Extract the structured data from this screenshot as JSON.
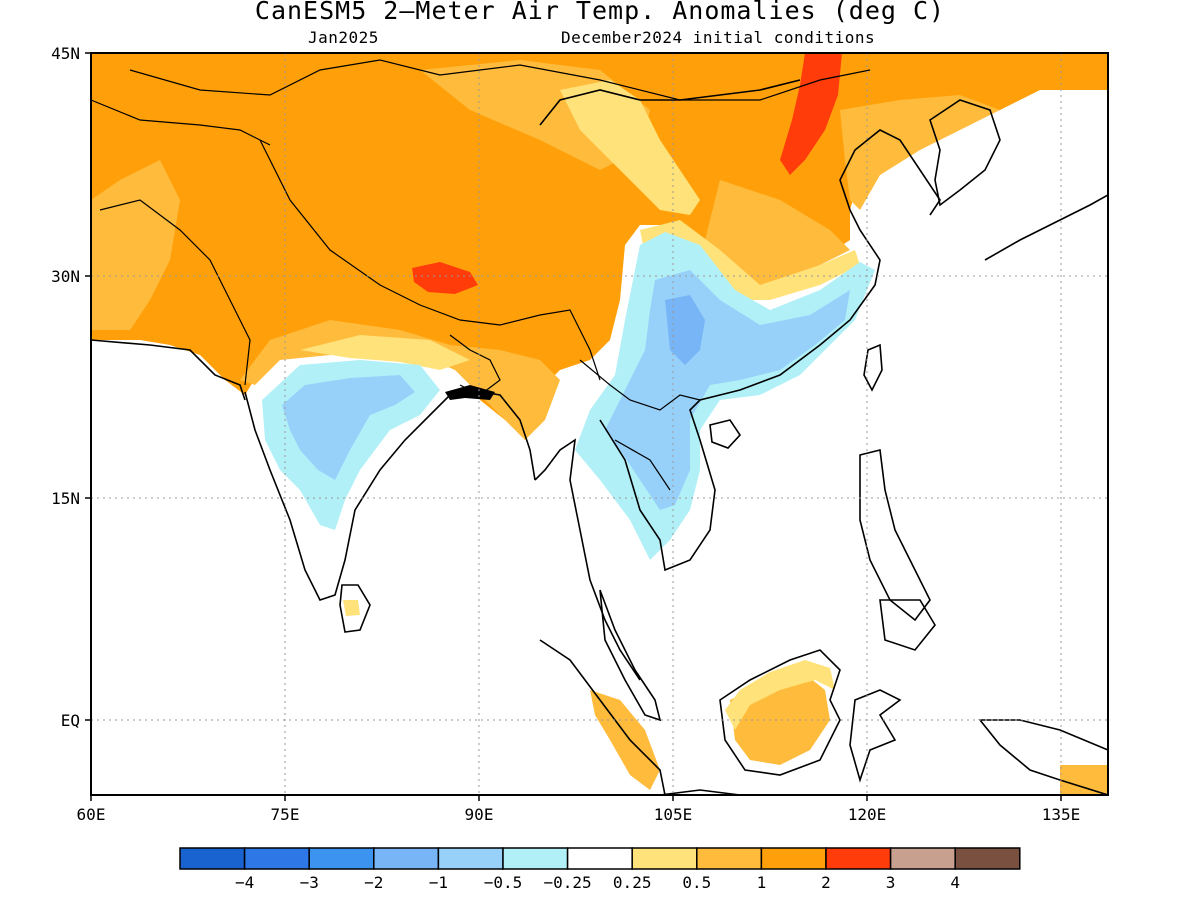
{
  "title": "CanESM5 2—Meter Air Temp. Anomalies (deg C)",
  "subtitle_left": "Jan2025",
  "subtitle_right": "December2024 initial conditions",
  "lon_ticks": [
    "60E",
    "75E",
    "90E",
    "105E",
    "120E",
    "135E"
  ],
  "lat_ticks": [
    "45N",
    "30N",
    "15N",
    "EQ"
  ],
  "colorbar": {
    "colors": [
      "#1863d0",
      "#2d78e6",
      "#3d94f0",
      "#77b5f6",
      "#97d1fa",
      "#b2f0f8",
      "#ffffff",
      "#ffe27a",
      "#ffbb3c",
      "#ffa00a",
      "#ff3c0a",
      "#c8a090",
      "#7a5040"
    ],
    "labels": [
      "−4",
      "−3",
      "−2",
      "−1",
      "−0.5",
      "−0.25",
      "0.25",
      "0.5",
      "1",
      "2",
      "3",
      "4"
    ]
  },
  "palette": {
    "yellow": "#ffe27a",
    "lightorange": "#ffbb3c",
    "orange": "#ffa00a",
    "red": "#ff3c0a",
    "lightblue": "#b2f0f8",
    "blue": "#97d1fa",
    "midblue": "#77b5f6"
  }
}
